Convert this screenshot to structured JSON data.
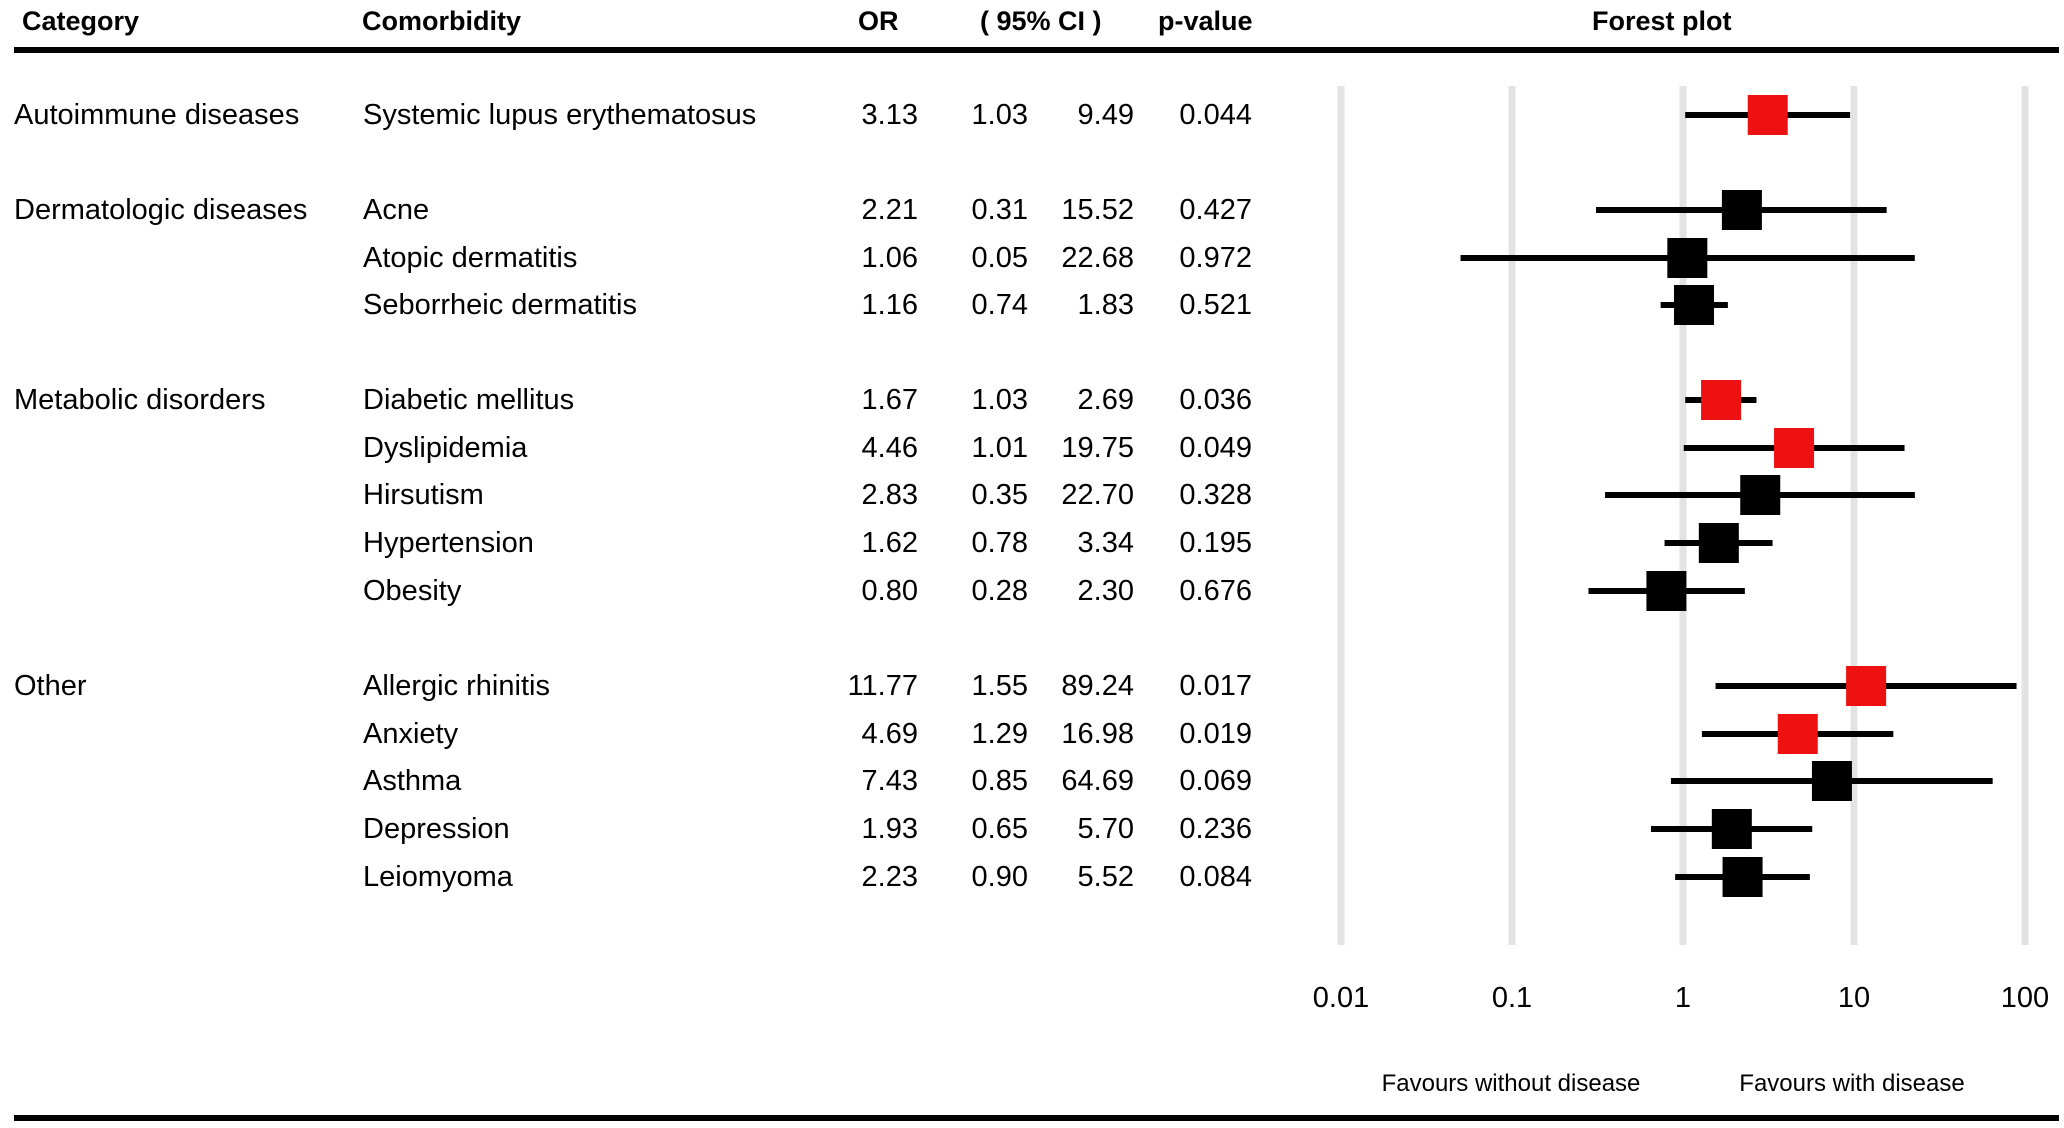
{
  "headers": {
    "category": "Category",
    "comorbidity": "Comorbidity",
    "or": "OR",
    "ci": "( 95% CI )",
    "pvalue": "p-value",
    "forest": "Forest plot"
  },
  "chart_data": {
    "type": "forest",
    "title": "Forest plot",
    "x_scale": "log10",
    "xlim": [
      0.01,
      100
    ],
    "xticks": [
      "0.01",
      "0.1",
      "1",
      "10",
      "100"
    ],
    "reference_line": 1,
    "xlabel_left": "Favours without disease",
    "xlabel_right": "Favours with disease",
    "significant_color": "#ee1111",
    "nonsignificant_color": "#000000",
    "rows": [
      {
        "category": "Autoimmune diseases",
        "name": "Systemic lupus erythematosus",
        "or": 3.13,
        "lo": 1.03,
        "hi": 9.49,
        "or_text": "3.13",
        "lo_text": "1.03",
        "hi_text": "9.49",
        "p": "0.044",
        "significant": true
      },
      {
        "category": "Dermatologic diseases",
        "name": "Acne",
        "or": 2.21,
        "lo": 0.31,
        "hi": 15.52,
        "or_text": "2.21",
        "lo_text": "0.31",
        "hi_text": "15.52",
        "p": "0.427",
        "significant": false
      },
      {
        "category": "",
        "name": "Atopic dermatitis",
        "or": 1.06,
        "lo": 0.05,
        "hi": 22.68,
        "or_text": "1.06",
        "lo_text": "0.05",
        "hi_text": "22.68",
        "p": "0.972",
        "significant": false
      },
      {
        "category": "",
        "name": "Seborrheic dermatitis",
        "or": 1.16,
        "lo": 0.74,
        "hi": 1.83,
        "or_text": "1.16",
        "lo_text": "0.74",
        "hi_text": "1.83",
        "p": "0.521",
        "significant": false
      },
      {
        "category": "Metabolic disorders",
        "name": "Diabetic mellitus",
        "or": 1.67,
        "lo": 1.03,
        "hi": 2.69,
        "or_text": "1.67",
        "lo_text": "1.03",
        "hi_text": "2.69",
        "p": "0.036",
        "significant": true
      },
      {
        "category": "",
        "name": "Dyslipidemia",
        "or": 4.46,
        "lo": 1.01,
        "hi": 19.75,
        "or_text": "4.46",
        "lo_text": "1.01",
        "hi_text": "19.75",
        "p": "0.049",
        "significant": true
      },
      {
        "category": "",
        "name": "Hirsutism",
        "or": 2.83,
        "lo": 0.35,
        "hi": 22.7,
        "or_text": "2.83",
        "lo_text": "0.35",
        "hi_text": "22.70",
        "p": "0.328",
        "significant": false
      },
      {
        "category": "",
        "name": "Hypertension",
        "or": 1.62,
        "lo": 0.78,
        "hi": 3.34,
        "or_text": "1.62",
        "lo_text": "0.78",
        "hi_text": "3.34",
        "p": "0.195",
        "significant": false
      },
      {
        "category": "",
        "name": "Obesity",
        "or": 0.8,
        "lo": 0.28,
        "hi": 2.3,
        "or_text": "0.80",
        "lo_text": "0.28",
        "hi_text": "2.30",
        "p": "0.676",
        "significant": false
      },
      {
        "category": "Other",
        "name": "Allergic rhinitis",
        "or": 11.77,
        "lo": 1.55,
        "hi": 89.24,
        "or_text": "11.77",
        "lo_text": "1.55",
        "hi_text": "89.24",
        "p": "0.017",
        "significant": true
      },
      {
        "category": "",
        "name": "Anxiety",
        "or": 4.69,
        "lo": 1.29,
        "hi": 16.98,
        "or_text": "4.69",
        "lo_text": "1.29",
        "hi_text": "16.98",
        "p": "0.019",
        "significant": true
      },
      {
        "category": "",
        "name": "Asthma",
        "or": 7.43,
        "lo": 0.85,
        "hi": 64.69,
        "or_text": "7.43",
        "lo_text": "0.85",
        "hi_text": "64.69",
        "p": "0.069",
        "significant": false
      },
      {
        "category": "",
        "name": "Depression",
        "or": 1.93,
        "lo": 0.65,
        "hi": 5.7,
        "or_text": "1.93",
        "lo_text": "0.65",
        "hi_text": "5.70",
        "p": "0.236",
        "significant": false
      },
      {
        "category": "",
        "name": "Leiomyoma",
        "or": 2.23,
        "lo": 0.9,
        "hi": 5.52,
        "or_text": "2.23",
        "lo_text": "0.90",
        "hi_text": "5.52",
        "p": "0.084",
        "significant": false
      }
    ]
  }
}
